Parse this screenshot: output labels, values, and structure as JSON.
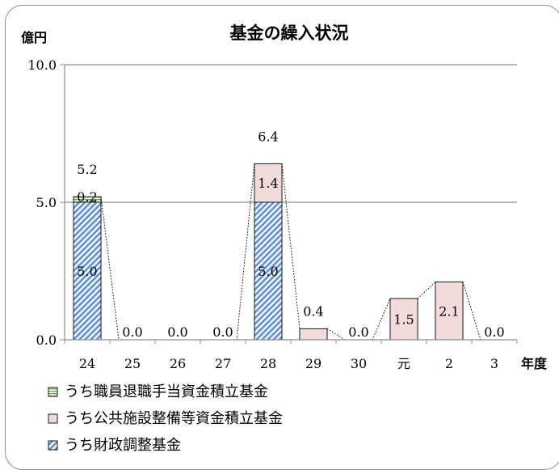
{
  "chart_data": {
    "type": "bar",
    "stacked": true,
    "title": "基金の繰入状況",
    "ylabel": "億円",
    "xlabel": "年度",
    "categories": [
      "24",
      "25",
      "26",
      "27",
      "28",
      "29",
      "30",
      "元",
      "2",
      "3"
    ],
    "ylim": [
      0,
      10
    ],
    "yticks": [
      "0.0",
      "5.0",
      "10.0"
    ],
    "grid": true,
    "legend_position": "bottom-left",
    "series": [
      {
        "name": "うち財政調整基金",
        "values": [
          5.0,
          0,
          0,
          0,
          5.0,
          0,
          0,
          0,
          0,
          0
        ],
        "labels": [
          "5.0",
          "",
          "",
          "",
          "5.0",
          "",
          "",
          "",
          "",
          ""
        ],
        "color": "#5b8fd6",
        "pattern": "hatch"
      },
      {
        "name": "うち公共施設整備等資金積立基金",
        "values": [
          0,
          0,
          0,
          0,
          1.4,
          0.4,
          0,
          1.5,
          2.1,
          0
        ],
        "labels": [
          "",
          "",
          "",
          "",
          "1.4",
          "",
          "",
          "1.5",
          "2.1",
          ""
        ],
        "color": "#f2dcdb"
      },
      {
        "name": "うち職員退職手当資金積立基金",
        "values": [
          0.2,
          0,
          0,
          0,
          0,
          0,
          0,
          0,
          0,
          0
        ],
        "labels": [
          "0.2",
          "",
          "",
          "",
          "",
          "",
          "",
          "",
          "",
          ""
        ],
        "color": "#c6e0b4"
      }
    ],
    "totals": [
      "5.2",
      "0.0",
      "0.0",
      "0.0",
      "6.4",
      "0.4",
      "0.0",
      "",
      "",
      "0.0"
    ],
    "legend_order": [
      "うち職員退職手当資金積立基金",
      "うち公共施設整備等資金積立基金",
      "うち財政調整基金"
    ]
  }
}
